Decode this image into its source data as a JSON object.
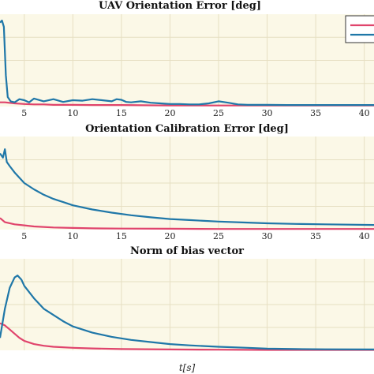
{
  "colors": {
    "red": "#e0446c",
    "blue": "#1f77a8",
    "plot_bg": "#fbf8e7",
    "grid": "#e6dfc2"
  },
  "xlabel": "t[s]",
  "chart_data": [
    {
      "type": "line",
      "title": "UAV Orientation Error [deg]",
      "xlim": [
        2.5,
        41
      ],
      "x_ticks": [
        5,
        10,
        15,
        20,
        25,
        30,
        35,
        40
      ],
      "grid": true,
      "legend": "top-right",
      "series": [
        {
          "color": "red",
          "x": [
            2.5,
            3,
            4,
            5,
            6,
            7,
            8,
            10,
            12,
            15,
            20,
            25,
            30,
            35,
            41
          ],
          "y": [
            0.2,
            0.2,
            0.15,
            0.12,
            0.1,
            0.1,
            0.08,
            0.08,
            0.07,
            0.07,
            0.05,
            0.05,
            0.05,
            0.05,
            0.05
          ]
        },
        {
          "color": "blue",
          "x": [
            2.5,
            2.7,
            2.9,
            3.1,
            3.3,
            3.6,
            4,
            4.5,
            5,
            5.5,
            6,
            7,
            8,
            9,
            10,
            11,
            12,
            13,
            14,
            14.5,
            15,
            15.5,
            16,
            17,
            18,
            19,
            20,
            21,
            22,
            23,
            24,
            25,
            26,
            27,
            28,
            30,
            32,
            35,
            38,
            41
          ],
          "y": [
            4.0,
            4.1,
            3.8,
            1.5,
            0.45,
            0.25,
            0.2,
            0.35,
            0.3,
            0.2,
            0.38,
            0.25,
            0.35,
            0.22,
            0.3,
            0.28,
            0.35,
            0.3,
            0.25,
            0.35,
            0.32,
            0.22,
            0.2,
            0.25,
            0.18,
            0.15,
            0.12,
            0.12,
            0.1,
            0.1,
            0.15,
            0.25,
            0.18,
            0.1,
            0.08,
            0.08,
            0.07,
            0.07,
            0.07,
            0.07
          ]
        }
      ],
      "ylim": [
        0,
        4.4
      ]
    },
    {
      "type": "line",
      "title": "Orientation Calibration Error [deg]",
      "xlim": [
        2.5,
        41
      ],
      "x_ticks": [
        5,
        10,
        15,
        20,
        25,
        30,
        35,
        40
      ],
      "grid": true,
      "series": [
        {
          "color": "red",
          "x": [
            2.5,
            3,
            4,
            5,
            6,
            8,
            10,
            12,
            15,
            20,
            25,
            30,
            35,
            41
          ],
          "y": [
            0.55,
            0.35,
            0.25,
            0.2,
            0.15,
            0.1,
            0.08,
            0.06,
            0.05,
            0.04,
            0.03,
            0.03,
            0.03,
            0.03
          ]
        },
        {
          "color": "blue",
          "x": [
            2.5,
            2.8,
            3.0,
            3.2,
            3.5,
            4,
            5,
            6,
            7,
            8,
            9,
            10,
            12,
            14,
            16,
            18,
            20,
            22,
            25,
            28,
            30,
            33,
            36,
            41
          ],
          "y": [
            3.6,
            3.4,
            3.8,
            3.2,
            3.0,
            2.7,
            2.2,
            1.9,
            1.65,
            1.45,
            1.3,
            1.15,
            0.95,
            0.8,
            0.68,
            0.58,
            0.5,
            0.45,
            0.38,
            0.33,
            0.3,
            0.27,
            0.25,
            0.22
          ]
        }
      ],
      "ylim": [
        0,
        4.4
      ]
    },
    {
      "type": "line",
      "title": "Norm of bias vector",
      "xlim": [
        2.5,
        41
      ],
      "x_ticks": [
        5,
        10,
        15,
        20,
        25,
        30,
        35,
        40
      ],
      "grid": true,
      "series": [
        {
          "color": "red",
          "x": [
            2.5,
            3,
            3.5,
            4,
            4.5,
            5,
            6,
            7,
            8,
            10,
            12,
            15,
            20,
            25,
            30,
            35,
            41
          ],
          "y": [
            1.3,
            1.2,
            1.0,
            0.8,
            0.6,
            0.45,
            0.3,
            0.22,
            0.17,
            0.12,
            0.09,
            0.06,
            0.04,
            0.03,
            0.02,
            0.02,
            0.02
          ]
        },
        {
          "color": "blue",
          "x": [
            2.5,
            3,
            3.5,
            4,
            4.3,
            4.7,
            5,
            6,
            7,
            8,
            9,
            10,
            12,
            14,
            16,
            18,
            20,
            22,
            25,
            28,
            30,
            33,
            36,
            41
          ],
          "y": [
            0.6,
            2.0,
            3.0,
            3.5,
            3.6,
            3.4,
            3.1,
            2.5,
            2.0,
            1.7,
            1.4,
            1.15,
            0.85,
            0.65,
            0.5,
            0.4,
            0.3,
            0.24,
            0.17,
            0.12,
            0.08,
            0.06,
            0.05,
            0.04
          ]
        }
      ],
      "ylim": [
        0,
        4.4
      ]
    }
  ]
}
